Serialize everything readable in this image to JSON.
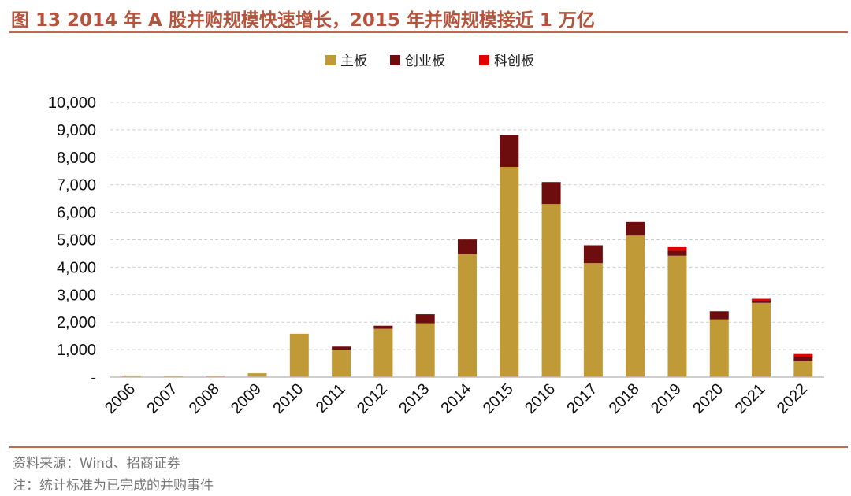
{
  "title": "图 13 2014 年 A 股并购规模快速增长，2015 年并购规模接近 1 万亿",
  "source": "资料来源：Wind、招商证券",
  "note": "注：统计标准为已完成的并购事件",
  "chart_data": {
    "type": "bar",
    "stacked": true,
    "categories": [
      "2006",
      "2007",
      "2008",
      "2009",
      "2010",
      "2011",
      "2012",
      "2013",
      "2014",
      "2015",
      "2016",
      "2017",
      "2018",
      "2019",
      "2020",
      "2021",
      "2022"
    ],
    "series": [
      {
        "name": "主板",
        "color": "#c09a36",
        "values": [
          60,
          40,
          50,
          140,
          1580,
          1000,
          1760,
          1960,
          4480,
          7650,
          6300,
          4150,
          5150,
          4420,
          2100,
          2700,
          580
        ]
      },
      {
        "name": "创业板",
        "color": "#6e0d0d",
        "values": [
          0,
          0,
          0,
          0,
          0,
          110,
          110,
          330,
          530,
          1150,
          800,
          650,
          500,
          180,
          300,
          100,
          140
        ]
      },
      {
        "name": "科创板",
        "color": "#e00000",
        "values": [
          0,
          0,
          0,
          0,
          0,
          0,
          0,
          0,
          0,
          0,
          0,
          0,
          0,
          130,
          0,
          50,
          120
        ]
      }
    ],
    "ylim": [
      0,
      10000
    ],
    "yticks": [
      {
        "value": 0,
        "label": "-"
      },
      {
        "value": 1000,
        "label": "1,000"
      },
      {
        "value": 2000,
        "label": "2,000"
      },
      {
        "value": 3000,
        "label": "3,000"
      },
      {
        "value": 4000,
        "label": "4,000"
      },
      {
        "value": 5000,
        "label": "5,000"
      },
      {
        "value": 6000,
        "label": "6,000"
      },
      {
        "value": 7000,
        "label": "7,000"
      },
      {
        "value": 8000,
        "label": "8,000"
      },
      {
        "value": 9000,
        "label": "9,000"
      },
      {
        "value": 10000,
        "label": "10,000"
      }
    ],
    "grid": true,
    "legend": "top-center",
    "xlabel": "",
    "ylabel": ""
  }
}
